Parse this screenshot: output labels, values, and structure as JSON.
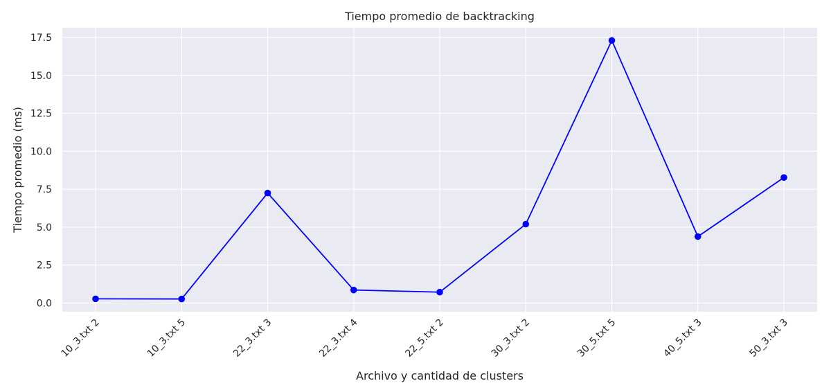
{
  "chart_data": {
    "type": "line",
    "title": "Tiempo promedio de backtracking",
    "xlabel": "Archivo y cantidad de clusters",
    "ylabel": "Tiempo promedio (ms)",
    "categories": [
      "10_3.txt 2",
      "10_3.txt 5",
      "22_3.txt 3",
      "22_3.txt 4",
      "22_5.txt 2",
      "30_3.txt 2",
      "30_5.txt 5",
      "40_5.txt 3",
      "50_3.txt 3"
    ],
    "series": [
      {
        "values": [
          0.28,
          0.27,
          7.25,
          0.86,
          0.72,
          5.2,
          17.3,
          4.38,
          8.27
        ],
        "color": "#0000ff",
        "marker": "circle"
      }
    ],
    "yticks": [
      0.0,
      2.5,
      5.0,
      7.5,
      10.0,
      12.5,
      15.0,
      17.5
    ],
    "ytick_labels": [
      "0.0",
      "2.5",
      "5.0",
      "7.5",
      "10.0",
      "12.5",
      "15.0",
      "17.5"
    ],
    "ylim": [
      -0.57,
      18.14
    ],
    "grid": true,
    "background_color": "#eaeaf2",
    "grid_color": "#ffffff"
  }
}
